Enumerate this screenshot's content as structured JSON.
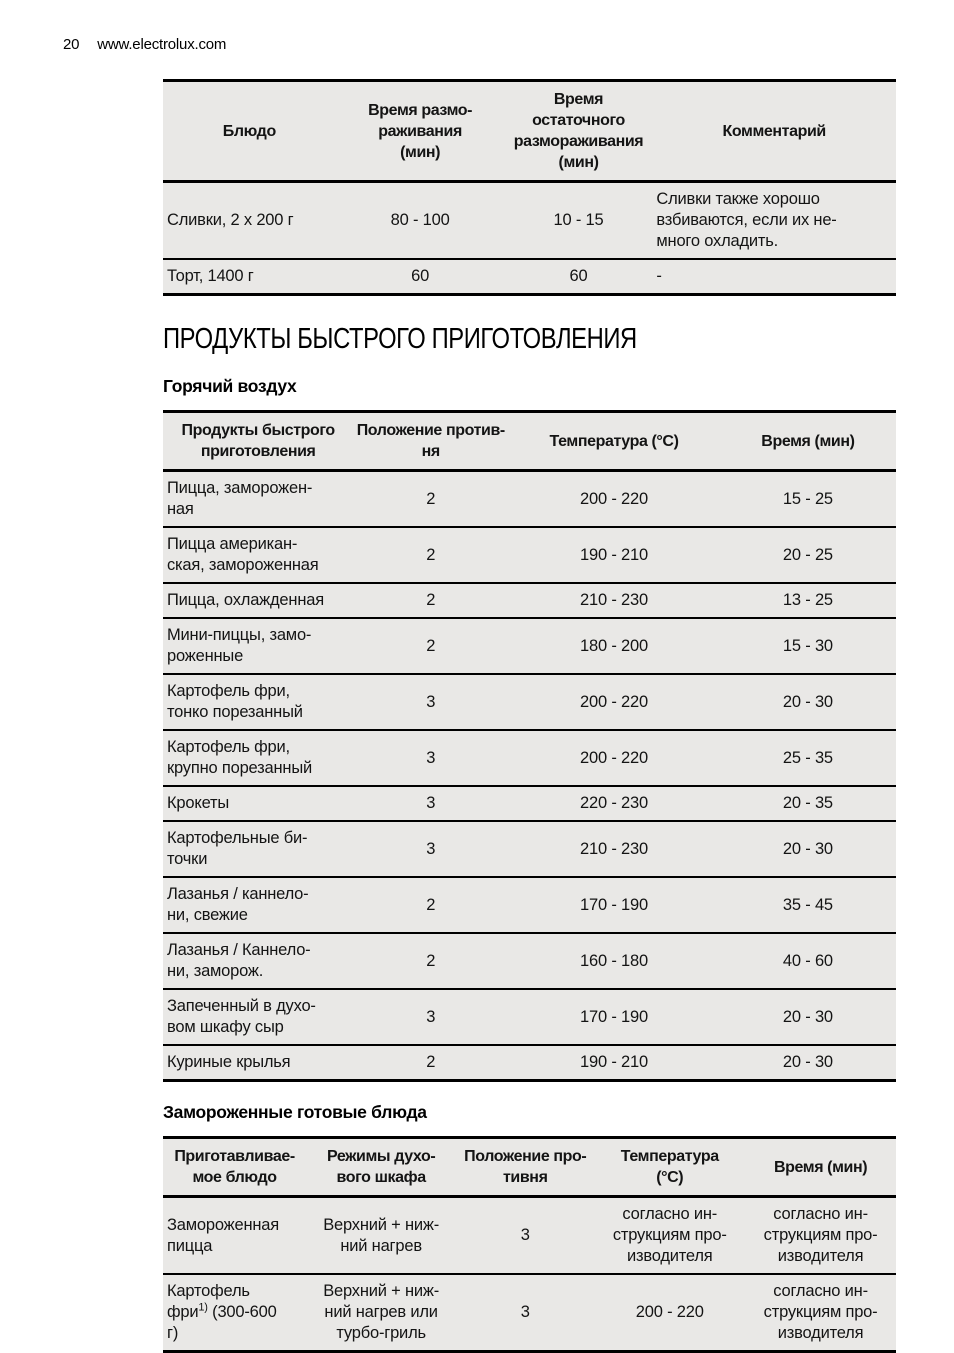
{
  "page": {
    "number": "20",
    "site": "www.electrolux.com"
  },
  "colors": {
    "table_background": "#e9e8e6",
    "border": "#000000",
    "page_background": "#ffffff"
  },
  "section_title": "ПРОДУКТЫ БЫСТРОГО ПРИГОТОВЛЕНИЯ",
  "defrost": {
    "headers": [
      "Блюдо",
      "Время размо-\nраживания\n(мин)",
      "Время остаточного\nразмораживания\n(мин)",
      "Комментарий"
    ],
    "rows": [
      {
        "dish": "Сливки, 2 x 200 г",
        "defrost_time": "80 - 100",
        "residual_time": "10 - 15",
        "comment": "Сливки также хорошо\nвзбиваются, если их не-\nмного охладить."
      },
      {
        "dish": "Торт, 1400 г",
        "defrost_time": "60",
        "residual_time": "60",
        "comment": "-"
      }
    ]
  },
  "hot_air": {
    "subtitle": "Горячий воздух",
    "headers": [
      "Продукты быстрого\nприготовления",
      "Положение против-\nня",
      "Температура (°C)",
      "Время (мин)"
    ],
    "rows": [
      {
        "product": "Пицца, заморожен-\nная",
        "shelf": "2",
        "temp": "200 - 220",
        "time": "15 - 25"
      },
      {
        "product": "Пицца американ-\nская, замороженная",
        "shelf": "2",
        "temp": "190 - 210",
        "time": "20 - 25"
      },
      {
        "product": "Пицца, охлажденная",
        "shelf": "2",
        "temp": "210 - 230",
        "time": "13 - 25"
      },
      {
        "product": "Мини-пиццы, замо-\nроженные",
        "shelf": "2",
        "temp": "180 - 200",
        "time": "15 - 30"
      },
      {
        "product": "Картофель фри,\nтонко порезанный",
        "shelf": "3",
        "temp": "200 - 220",
        "time": "20 - 30"
      },
      {
        "product": "Картофель фри,\nкрупно порезанный",
        "shelf": "3",
        "temp": "200 - 220",
        "time": "25 - 35"
      },
      {
        "product": "Крокеты",
        "shelf": "3",
        "temp": "220 - 230",
        "time": "20 - 35"
      },
      {
        "product": "Картофельные би-\nточки",
        "shelf": "3",
        "temp": "210 - 230",
        "time": "20 - 30"
      },
      {
        "product": "Лазанья / каннело-\nни, свежие",
        "shelf": "2",
        "temp": "170 - 190",
        "time": "35 - 45"
      },
      {
        "product": "Лазанья / Каннело-\nни, заморож.",
        "shelf": "2",
        "temp": "160 - 180",
        "time": "40 - 60"
      },
      {
        "product": "Запеченный в духо-\nвом шкафу сыр",
        "shelf": "3",
        "temp": "170 - 190",
        "time": "20 - 30"
      },
      {
        "product": "Куриные крылья",
        "shelf": "2",
        "temp": "190 - 210",
        "time": "20 - 30"
      }
    ]
  },
  "frozen": {
    "subtitle": "Замороженные готовые блюда",
    "headers": [
      "Приготавливае-\nмое блюдо",
      "Режимы духо-\nвого шкафа",
      "Положение про-\nтивня",
      "Температура\n(°C)",
      "Время (мин)"
    ],
    "rows": [
      {
        "dish_pre": "Замороженная\nпицца",
        "dish_sup": "",
        "dish_post": "",
        "mode": "Верхний + ниж-\nний нагрев",
        "shelf": "3",
        "temp": "согласно ин-\nструкциям про-\nизводителя",
        "time": "согласно ин-\nструкциям про-\nизводителя"
      },
      {
        "dish_pre": "Картофель\nфри",
        "dish_sup": "1)",
        "dish_post": " (300-600\nг)",
        "mode": "Верхний + ниж-\nний нагрев или\nтурбо-гриль",
        "shelf": "3",
        "temp": "200 - 220",
        "time": "согласно ин-\nструкциям про-\nизводителя"
      }
    ]
  }
}
